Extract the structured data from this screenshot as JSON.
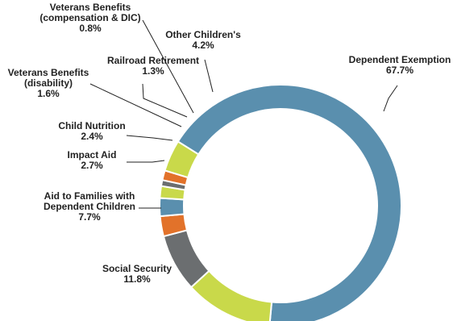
{
  "chart_data": {
    "type": "donut",
    "title": "",
    "slices": [
      {
        "label_lines": [
          "Dependent Exemption"
        ],
        "value_text": "67.7%",
        "value": 67.7,
        "color": "#5a8fae"
      },
      {
        "label_lines": [
          "Social Security"
        ],
        "value_text": "11.8%",
        "value": 11.8,
        "color": "#c9d94a"
      },
      {
        "label_lines": [
          "Aid to Families with",
          "Dependent Children"
        ],
        "value_text": "7.7%",
        "value": 7.7,
        "color": "#6b6e70"
      },
      {
        "label_lines": [
          "Impact Aid"
        ],
        "value_text": "2.7%",
        "value": 2.7,
        "color": "#e2722a"
      },
      {
        "label_lines": [
          "Child Nutrition"
        ],
        "value_text": "2.4%",
        "value": 2.4,
        "color": "#5a8fae"
      },
      {
        "label_lines": [
          "Veterans Benefits",
          "(disability)"
        ],
        "value_text": "1.6%",
        "value": 1.6,
        "color": "#c9d94a"
      },
      {
        "label_lines": [
          "Veterans Benefits",
          "(compensation & DIC)"
        ],
        "value_text": "0.8%",
        "value": 0.8,
        "color": "#6b6e70"
      },
      {
        "label_lines": [
          "Railroad Retirement"
        ],
        "value_text": "1.3%",
        "value": 1.3,
        "color": "#e2722a"
      },
      {
        "label_lines": [
          "Other Children's"
        ],
        "value_text": "4.2%",
        "value": 4.2,
        "color": "#c9d94a"
      }
    ]
  }
}
